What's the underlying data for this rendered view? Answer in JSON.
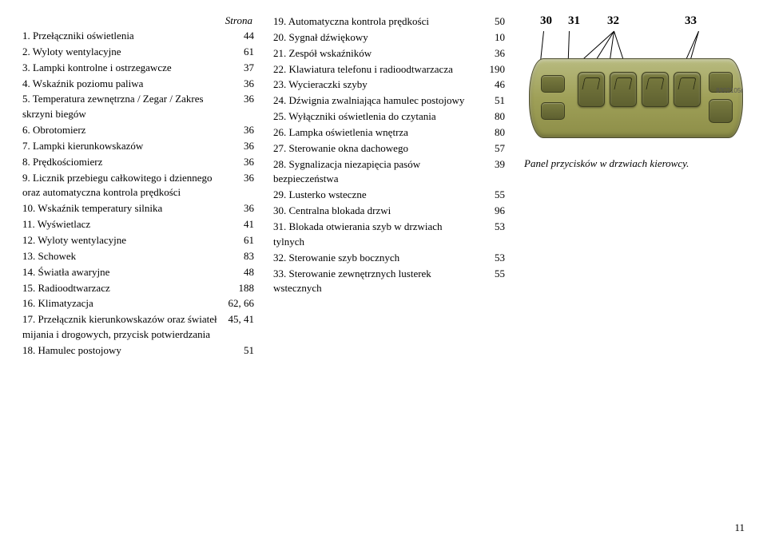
{
  "header_label": "Strona",
  "col1_items": [
    {
      "text": "1. Przełączniki oświetlenia",
      "page": "44"
    },
    {
      "text": "2. Wyloty wentylacyjne",
      "page": "61"
    },
    {
      "text": "3. Lampki kontrolne i ostrzegawcze",
      "page": "37"
    },
    {
      "text": "4. Wskaźnik poziomu paliwa",
      "page": "36"
    },
    {
      "text": "5. Temperatura zewnętrzna / Zegar / Zakres skrzyni biegów",
      "page": "36"
    },
    {
      "text": "6. Obrotomierz",
      "page": "36"
    },
    {
      "text": "7. Lampki kierunkowskazów",
      "page": "36"
    },
    {
      "text": "8. Prędkościomierz",
      "page": "36"
    },
    {
      "text": "9. Licznik przebiegu całkowitego i dziennego oraz automatyczna kontrola prędkości",
      "page": "36"
    },
    {
      "text": "10. Wskaźnik temperatury silnika",
      "page": "36"
    },
    {
      "text": "11. Wyświetlacz",
      "page": "41"
    },
    {
      "text": "12. Wyloty wentylacyjne",
      "page": "61"
    },
    {
      "text": "13. Schowek",
      "page": "83"
    },
    {
      "text": "14. Światła awaryjne",
      "page": "48"
    },
    {
      "text": "15. Radioodtwarzacz",
      "page": "188"
    },
    {
      "text": "16. Klimatyzacja",
      "page": "62, 66"
    },
    {
      "text": "17. Przełącznik kierunkowskazów oraz świateł mijania i drogowych, przycisk potwierdzania",
      "page": "45, 41"
    },
    {
      "text": "18. Hamulec postojowy",
      "page": "51"
    }
  ],
  "col2_items": [
    {
      "text": "19. Automatyczna kontrola prędkości",
      "page": "50"
    },
    {
      "text": "20. Sygnał dźwiękowy",
      "page": "10"
    },
    {
      "text": "21. Zespół wskaźników",
      "page": "36"
    },
    {
      "text": "22. Klawiatura telefonu i radioodtwarzacza",
      "page": "190"
    },
    {
      "text": "23. Wycieraczki szyby",
      "page": "46"
    },
    {
      "text": "24. Dźwignia zwalniająca hamulec postojowy",
      "page": "51"
    },
    {
      "text": "25. Wyłączniki oświetlenia do czytania",
      "page": "80"
    },
    {
      "text": "26. Lampka oświetlenia wnętrza",
      "page": "80"
    },
    {
      "text": "27. Sterowanie okna dachowego",
      "page": "57"
    },
    {
      "text": "28. Sygnalizacja niezapięcia pasów bezpieczeństwa",
      "page": "39"
    },
    {
      "text": "29. Lusterko wsteczne",
      "page": "55"
    },
    {
      "text": "30. Centralna blokada drzwi",
      "page": "96"
    },
    {
      "text": "31. Blokada otwierania szyb w drzwiach tylnych",
      "page": "53"
    },
    {
      "text": "32. Sterowanie szyb bocznych",
      "page": "53"
    },
    {
      "text": "33. Sterowanie zewnętrznych lusterek wstecznych",
      "page": "55"
    }
  ],
  "figure_numbers": [
    "30",
    "31",
    "32",
    "33"
  ],
  "image_code": "8302105r",
  "caption": "Panel przycisków w drzwiach kierowcy.",
  "page_number": "11"
}
